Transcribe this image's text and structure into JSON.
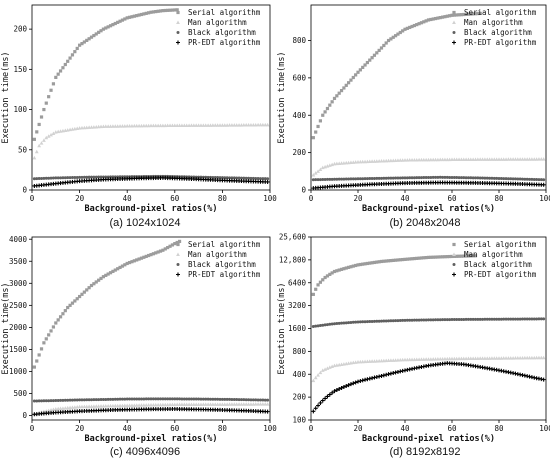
{
  "figure": {
    "captions": [
      "(a) 1024x1024",
      "(b) 2048x2048",
      "(c) 4096x4096",
      "(d) 8192x8192"
    ]
  },
  "colors": {
    "serial": "#9c9c9c",
    "man": "#d2d2d2",
    "black": "#606060",
    "predt": "#000000",
    "axis": "#000000"
  },
  "chart_data": [
    {
      "type": "scatter",
      "caption": "(a) 1024x1024",
      "xlabel": "Background-pixel ratios(%)",
      "ylabel": "Execution time(ms)",
      "xlim": [
        0,
        100
      ],
      "ylim": [
        0,
        230
      ],
      "xticks": [
        0,
        20,
        40,
        60,
        80,
        100
      ],
      "yticks": [
        0,
        50,
        100,
        150,
        200
      ],
      "ytick_labels": [
        "0",
        "50",
        "100",
        "150",
        "200"
      ],
      "legend_position": "top-right",
      "series": [
        {
          "name": "Serial algorithm",
          "marker": "square",
          "color_key": "serial",
          "x_range": [
            1,
            61
          ],
          "points": [
            [
              1,
              63
            ],
            [
              5,
              100
            ],
            [
              10,
              140
            ],
            [
              20,
              180
            ],
            [
              30,
              200
            ],
            [
              40,
              214
            ],
            [
              50,
              221
            ],
            [
              55,
              223
            ],
            [
              61,
              224
            ]
          ]
        },
        {
          "name": "Man algorithm",
          "marker": "triangle",
          "color_key": "man",
          "x_range": [
            1,
            99
          ],
          "points": [
            [
              1,
              40
            ],
            [
              3,
              55
            ],
            [
              6,
              65
            ],
            [
              10,
              72
            ],
            [
              20,
              77
            ],
            [
              30,
              79
            ],
            [
              50,
              80
            ],
            [
              80,
              80.5
            ],
            [
              99,
              81
            ]
          ]
        },
        {
          "name": "Black algorithm",
          "marker": "circle",
          "color_key": "black",
          "x_range": [
            1,
            99
          ],
          "points": [
            [
              1,
              14
            ],
            [
              10,
              15
            ],
            [
              25,
              16
            ],
            [
              40,
              16.5
            ],
            [
              55,
              17
            ],
            [
              70,
              16
            ],
            [
              85,
              15
            ],
            [
              99,
              14
            ]
          ]
        },
        {
          "name": "PR-EDT algorithm",
          "marker": "plus",
          "color_key": "predt",
          "x_range": [
            1,
            99
          ],
          "points": [
            [
              1,
              5
            ],
            [
              10,
              8
            ],
            [
              20,
              11
            ],
            [
              30,
              13
            ],
            [
              45,
              14.5
            ],
            [
              55,
              15
            ],
            [
              65,
              14
            ],
            [
              80,
              12
            ],
            [
              99,
              10
            ]
          ]
        }
      ]
    },
    {
      "type": "scatter",
      "caption": "(b) 2048x2048",
      "xlabel": "Background-pixel ratios(%)",
      "ylabel": "Execution time(ms)",
      "xlim": [
        0,
        100
      ],
      "ylim": [
        0,
        990
      ],
      "xticks": [
        0,
        20,
        40,
        60,
        80,
        100
      ],
      "yticks": [
        0,
        200,
        400,
        600,
        800
      ],
      "ytick_labels": [
        "0",
        "200",
        "400",
        "600",
        "800"
      ],
      "legend_position": "top-right",
      "series": [
        {
          "name": "Serial algorithm",
          "marker": "square",
          "color_key": "serial",
          "x_range": [
            1,
            72
          ],
          "points": [
            [
              1,
              280
            ],
            [
              5,
              400
            ],
            [
              10,
              490
            ],
            [
              20,
              630
            ],
            [
              30,
              760
            ],
            [
              33,
              800
            ],
            [
              40,
              860
            ],
            [
              50,
              910
            ],
            [
              60,
              935
            ],
            [
              72,
              945
            ]
          ]
        },
        {
          "name": "Man algorithm",
          "marker": "triangle",
          "color_key": "man",
          "x_range": [
            1,
            99
          ],
          "points": [
            [
              1,
              80
            ],
            [
              5,
              120
            ],
            [
              10,
              140
            ],
            [
              20,
              150
            ],
            [
              40,
              160
            ],
            [
              60,
              163
            ],
            [
              99,
              165
            ]
          ]
        },
        {
          "name": "Black algorithm",
          "marker": "circle",
          "color_key": "black",
          "x_range": [
            1,
            99
          ],
          "points": [
            [
              1,
              55
            ],
            [
              20,
              60
            ],
            [
              40,
              65
            ],
            [
              55,
              68
            ],
            [
              70,
              65
            ],
            [
              85,
              60
            ],
            [
              99,
              55
            ]
          ]
        },
        {
          "name": "PR-EDT algorithm",
          "marker": "plus",
          "color_key": "predt",
          "x_range": [
            1,
            99
          ],
          "points": [
            [
              1,
              10
            ],
            [
              10,
              20
            ],
            [
              25,
              30
            ],
            [
              40,
              37
            ],
            [
              55,
              40
            ],
            [
              70,
              38
            ],
            [
              85,
              34
            ],
            [
              99,
              28
            ]
          ]
        }
      ]
    },
    {
      "type": "scatter",
      "caption": "(c) 4096x4096",
      "xlabel": "Background-pixel ratios(%)",
      "ylabel": "Execution time(ms)",
      "xlim": [
        0,
        100
      ],
      "ylim": [
        -100,
        4050
      ],
      "xticks": [
        0,
        20,
        40,
        60,
        80,
        100
      ],
      "yticks": [
        0,
        500,
        1000,
        1500,
        2000,
        2500,
        3000,
        3500,
        4000
      ],
      "ytick_labels": [
        "0",
        "500",
        "1000",
        "1500",
        "2000",
        "2500",
        "3000",
        "3500",
        "4000"
      ],
      "legend_position": "top-right",
      "series": [
        {
          "name": "Serial algorithm",
          "marker": "square",
          "color_key": "serial",
          "x_range": [
            1,
            62
          ],
          "points": [
            [
              1,
              1100
            ],
            [
              5,
              1650
            ],
            [
              10,
              2100
            ],
            [
              15,
              2450
            ],
            [
              20,
              2700
            ],
            [
              25,
              2950
            ],
            [
              30,
              3150
            ],
            [
              40,
              3450
            ],
            [
              50,
              3650
            ],
            [
              55,
              3750
            ],
            [
              60,
              3900
            ],
            [
              62,
              3950
            ]
          ]
        },
        {
          "name": "Man algorithm",
          "marker": "triangle",
          "color_key": "man",
          "x_range": [
            1,
            99
          ],
          "points": [
            [
              1,
              30
            ],
            [
              5,
              90
            ],
            [
              10,
              150
            ],
            [
              20,
              200
            ],
            [
              40,
              230
            ],
            [
              60,
              250
            ],
            [
              99,
              260
            ]
          ]
        },
        {
          "name": "Black algorithm",
          "marker": "circle",
          "color_key": "black",
          "x_range": [
            1,
            99
          ],
          "points": [
            [
              1,
              330
            ],
            [
              20,
              355
            ],
            [
              40,
              375
            ],
            [
              55,
              380
            ],
            [
              70,
              375
            ],
            [
              85,
              365
            ],
            [
              99,
              350
            ]
          ]
        },
        {
          "name": "PR-EDT algorithm",
          "marker": "plus",
          "color_key": "predt",
          "x_range": [
            1,
            99
          ],
          "points": [
            [
              1,
              30
            ],
            [
              10,
              70
            ],
            [
              20,
              100
            ],
            [
              35,
              130
            ],
            [
              50,
              145
            ],
            [
              60,
              150
            ],
            [
              75,
              135
            ],
            [
              90,
              110
            ],
            [
              99,
              90
            ]
          ]
        }
      ]
    },
    {
      "type": "scatter",
      "caption": "(d) 8192x8192",
      "xlabel": "Background-pixel ratios(%)",
      "ylabel": "Execution time(ms)",
      "xlim": [
        0,
        100
      ],
      "y_scale": "log",
      "ylim": [
        100,
        25600
      ],
      "xticks": [
        0,
        20,
        40,
        60,
        80,
        100
      ],
      "yticks": [
        100,
        200,
        400,
        800,
        1600,
        3200,
        6400,
        12800,
        25600
      ],
      "ytick_labels": [
        "100",
        "200",
        "400",
        "800",
        "1600",
        "3200",
        "6400",
        "12,800",
        "25,600"
      ],
      "legend_position": "top-right",
      "series": [
        {
          "name": "Serial algorithm",
          "marker": "square",
          "color_key": "serial",
          "x_range": [
            1,
            70
          ],
          "points": [
            [
              1,
              4500
            ],
            [
              3,
              6000
            ],
            [
              6,
              7500
            ],
            [
              10,
              9000
            ],
            [
              20,
              11000
            ],
            [
              30,
              12200
            ],
            [
              40,
              13000
            ],
            [
              50,
              13800
            ],
            [
              60,
              14200
            ],
            [
              70,
              14500
            ]
          ]
        },
        {
          "name": "Man algorithm",
          "marker": "triangle",
          "color_key": "man",
          "x_range": [
            1,
            99
          ],
          "points": [
            [
              1,
              330
            ],
            [
              5,
              450
            ],
            [
              10,
              520
            ],
            [
              20,
              580
            ],
            [
              40,
              620
            ],
            [
              60,
              640
            ],
            [
              80,
              650
            ],
            [
              99,
              660
            ]
          ]
        },
        {
          "name": "Black algorithm",
          "marker": "circle",
          "color_key": "black",
          "x_range": [
            1,
            99
          ],
          "points": [
            [
              1,
              1700
            ],
            [
              10,
              1850
            ],
            [
              20,
              1950
            ],
            [
              40,
              2050
            ],
            [
              60,
              2100
            ],
            [
              80,
              2120
            ],
            [
              99,
              2140
            ]
          ]
        },
        {
          "name": "PR-EDT algorithm",
          "marker": "plus",
          "color_key": "predt",
          "x_range": [
            1,
            99
          ],
          "points": [
            [
              1,
              130
            ],
            [
              5,
              180
            ],
            [
              10,
              240
            ],
            [
              20,
              320
            ],
            [
              30,
              380
            ],
            [
              40,
              450
            ],
            [
              50,
              520
            ],
            [
              58,
              560
            ],
            [
              65,
              540
            ],
            [
              75,
              480
            ],
            [
              85,
              420
            ],
            [
              95,
              360
            ],
            [
              99,
              340
            ]
          ]
        }
      ]
    }
  ]
}
